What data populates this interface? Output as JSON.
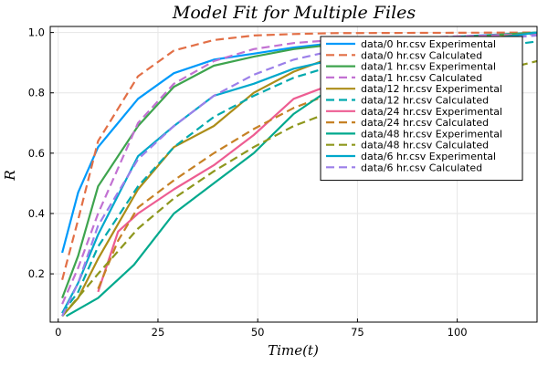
{
  "chart_data": {
    "type": "line",
    "title": "Model Fit for Multiple Files",
    "xlabel": "Time(t)",
    "ylabel": "R",
    "xlim": [
      -2,
      120
    ],
    "ylim": [
      0.04,
      1.02
    ],
    "xticks": [
      0,
      25,
      50,
      75,
      100
    ],
    "yticks": [
      0.2,
      0.4,
      0.6,
      0.8,
      1.0
    ],
    "ytick_labels": [
      "0.2",
      "0.4",
      "0.6",
      "0.8",
      "1.0"
    ],
    "grid": true,
    "legend": "top-right",
    "series": [
      {
        "name": "data/0 hr.csv Experimental",
        "color": "#009AFA",
        "dash": "solid",
        "x": [
          1,
          5,
          10,
          20,
          29,
          39,
          49,
          59,
          69,
          120
        ],
        "y": [
          0.27,
          0.47,
          0.62,
          0.78,
          0.865,
          0.91,
          0.93,
          0.95,
          0.965,
          1.0
        ]
      },
      {
        "name": "data/0 hr.csv Calculated",
        "color": "#E26F46",
        "dash": "dashed",
        "x": [
          1,
          5,
          10,
          20,
          29,
          39,
          49,
          59,
          69,
          120
        ],
        "y": [
          0.18,
          0.38,
          0.64,
          0.855,
          0.94,
          0.975,
          0.99,
          0.995,
          0.998,
          1.0
        ]
      },
      {
        "name": "data/1 hr.csv Experimental",
        "color": "#3EA44E",
        "dash": "solid",
        "x": [
          1,
          5,
          10,
          20,
          29,
          39,
          49,
          59,
          69,
          120
        ],
        "y": [
          0.12,
          0.26,
          0.49,
          0.69,
          0.82,
          0.89,
          0.92,
          0.945,
          0.96,
          1.0
        ]
      },
      {
        "name": "data/1 hr.csv Calculated",
        "color": "#C271D2",
        "dash": "dashed",
        "x": [
          1,
          5,
          10,
          20,
          29,
          39,
          49,
          59,
          69,
          120
        ],
        "y": [
          0.1,
          0.22,
          0.4,
          0.7,
          0.83,
          0.905,
          0.945,
          0.965,
          0.975,
          0.995
        ]
      },
      {
        "name": "data/12 hr.csv Experimental",
        "color": "#AC8D18",
        "dash": "solid",
        "x": [
          1,
          5,
          10,
          20,
          29,
          39,
          49,
          59,
          69,
          120
        ],
        "y": [
          0.06,
          0.12,
          0.25,
          0.48,
          0.62,
          0.69,
          0.8,
          0.87,
          0.92,
          1.0
        ]
      },
      {
        "name": "data/12 hr.csv Calculated",
        "color": "#00A9AD",
        "dash": "dashed",
        "x": [
          1,
          5,
          10,
          20,
          29,
          39,
          49,
          59,
          69,
          120
        ],
        "y": [
          0.07,
          0.14,
          0.29,
          0.49,
          0.62,
          0.72,
          0.79,
          0.85,
          0.89,
          0.97
        ]
      },
      {
        "name": "data/24 hr.csv Experimental",
        "color": "#ED5D92",
        "dash": "solid",
        "x": [
          10,
          15,
          20,
          29,
          39,
          49,
          59,
          69
        ],
        "y": [
          0.14,
          0.34,
          0.4,
          0.48,
          0.56,
          0.66,
          0.78,
          0.83
        ]
      },
      {
        "name": "data/24 hr.csv Calculated",
        "color": "#C68125",
        "dash": "dashed",
        "x": [
          10,
          15,
          20,
          29,
          39,
          49,
          59,
          69
        ],
        "y": [
          0.15,
          0.31,
          0.42,
          0.51,
          0.6,
          0.68,
          0.75,
          0.8
        ]
      },
      {
        "name": "data/48 hr.csv Experimental",
        "color": "#00A98D",
        "dash": "solid",
        "x": [
          2,
          10,
          19,
          29,
          39,
          49,
          59,
          69
        ],
        "y": [
          0.06,
          0.12,
          0.23,
          0.4,
          0.5,
          0.6,
          0.73,
          0.82
        ]
      },
      {
        "name": "data/48 hr.csv Calculated",
        "color": "#8E971D",
        "dash": "dashed",
        "x": [
          1,
          10,
          20,
          29,
          39,
          49,
          59,
          69,
          120
        ],
        "y": [
          0.06,
          0.2,
          0.35,
          0.45,
          0.54,
          0.62,
          0.69,
          0.74,
          0.905
        ]
      },
      {
        "name": "data/6 hr.csv Experimental",
        "color": "#00A8CB",
        "dash": "solid",
        "x": [
          1,
          5,
          10,
          20,
          29,
          39,
          49,
          59,
          69,
          120
        ],
        "y": [
          0.07,
          0.17,
          0.33,
          0.59,
          0.69,
          0.79,
          0.83,
          0.88,
          0.91,
          1.0
        ]
      },
      {
        "name": "data/6 hr.csv Calculated",
        "color": "#9B7FE9",
        "dash": "dashed",
        "x": [
          1,
          5,
          10,
          20,
          29,
          39,
          49,
          59,
          69,
          120
        ],
        "y": [
          0.06,
          0.17,
          0.36,
          0.58,
          0.69,
          0.79,
          0.86,
          0.91,
          0.94,
          0.99
        ]
      }
    ]
  }
}
